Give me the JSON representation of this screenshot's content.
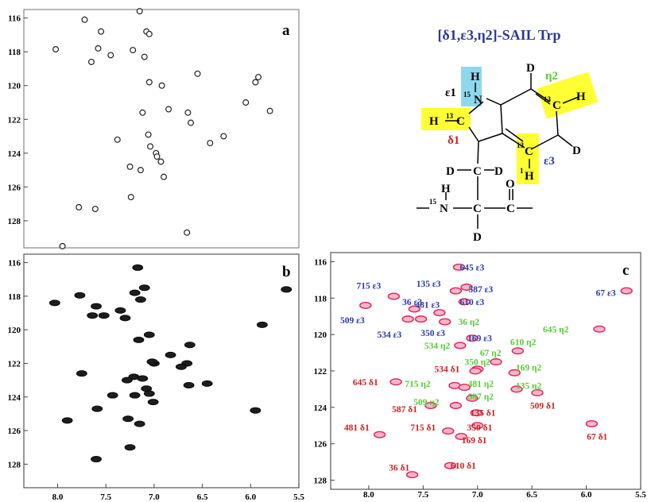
{
  "structure": {
    "title": "[δ1,ε3,η2]-SAIL Trp",
    "greek": {
      "e1": "ε1",
      "d1": "δ1",
      "e3": "ε3",
      "h2": "η2"
    },
    "atoms": {
      "H": "H",
      "D": "D",
      "N": "N",
      "C": "C",
      "O": "O",
      "iso15": "15",
      "iso13": "13",
      "iso1": "1"
    }
  },
  "colors": {
    "epsilon3": "#2b3aa8",
    "eta2": "#55cc33",
    "delta1": "#cc1f1f",
    "peak_c": "#e0225c",
    "highlight_yellow": "#ffff33",
    "highlight_cyan": "#8ed8ee",
    "title": "#2b3a8f"
  },
  "chart_data": [
    {
      "type": "scatter",
      "panel": "a",
      "xlim": [
        8.35,
        5.5
      ],
      "ylim": [
        115.5,
        129.6
      ],
      "yticks": [
        "116",
        "118",
        "120",
        "122",
        "124",
        "126",
        "128"
      ],
      "xticks": [],
      "style": "contour",
      "points": [
        {
          "x": 7.15,
          "y": 115.6
        },
        {
          "x": 7.72,
          "y": 116.1
        },
        {
          "x": 7.08,
          "y": 116.8
        },
        {
          "x": 7.05,
          "y": 116.95
        },
        {
          "x": 7.55,
          "y": 116.8
        },
        {
          "x": 8.02,
          "y": 117.85
        },
        {
          "x": 7.65,
          "y": 118.6
        },
        {
          "x": 7.58,
          "y": 117.8
        },
        {
          "x": 7.22,
          "y": 117.9
        },
        {
          "x": 7.45,
          "y": 118.2
        },
        {
          "x": 7.1,
          "y": 118.3
        },
        {
          "x": 6.92,
          "y": 120.0
        },
        {
          "x": 7.05,
          "y": 119.8
        },
        {
          "x": 6.55,
          "y": 119.3
        },
        {
          "x": 6.85,
          "y": 121.4
        },
        {
          "x": 7.12,
          "y": 121.6
        },
        {
          "x": 6.65,
          "y": 121.6
        },
        {
          "x": 6.62,
          "y": 122.2
        },
        {
          "x": 7.06,
          "y": 122.9
        },
        {
          "x": 7.38,
          "y": 123.2
        },
        {
          "x": 7.04,
          "y": 123.6
        },
        {
          "x": 6.98,
          "y": 124.0
        },
        {
          "x": 6.97,
          "y": 124.2
        },
        {
          "x": 6.93,
          "y": 124.5
        },
        {
          "x": 7.14,
          "y": 125.0
        },
        {
          "x": 7.24,
          "y": 126.6
        },
        {
          "x": 7.61,
          "y": 127.3
        },
        {
          "x": 7.78,
          "y": 127.2
        },
        {
          "x": 6.42,
          "y": 123.4
        },
        {
          "x": 6.05,
          "y": 121.0
        },
        {
          "x": 5.92,
          "y": 119.5
        },
        {
          "x": 5.95,
          "y": 119.8
        },
        {
          "x": 5.8,
          "y": 121.5
        },
        {
          "x": 6.28,
          "y": 123.0
        },
        {
          "x": 6.66,
          "y": 128.7
        },
        {
          "x": 7.95,
          "y": 129.5
        },
        {
          "x": 7.25,
          "y": 124.8
        },
        {
          "x": 6.9,
          "y": 125.4
        }
      ]
    },
    {
      "type": "scatter",
      "panel": "b",
      "xlim": [
        8.35,
        5.5
      ],
      "ylim": [
        115.5,
        129.4
      ],
      "yticks": [
        "116",
        "118",
        "120",
        "122",
        "124",
        "126",
        "128"
      ],
      "xticks": [
        "8.0",
        "7.5",
        "7.0",
        "6.5",
        "6.0",
        "5.5"
      ],
      "style": "filled",
      "points": [
        {
          "x": 7.17,
          "y": 116.3
        },
        {
          "x": 7.1,
          "y": 117.5
        },
        {
          "x": 7.2,
          "y": 117.8
        },
        {
          "x": 7.14,
          "y": 118.2
        },
        {
          "x": 7.77,
          "y": 117.95
        },
        {
          "x": 8.03,
          "y": 118.4
        },
        {
          "x": 5.63,
          "y": 117.6
        },
        {
          "x": 5.88,
          "y": 119.7
        },
        {
          "x": 7.6,
          "y": 118.6
        },
        {
          "x": 7.52,
          "y": 119.15
        },
        {
          "x": 7.64,
          "y": 119.15
        },
        {
          "x": 7.35,
          "y": 118.85
        },
        {
          "x": 7.3,
          "y": 119.3
        },
        {
          "x": 7.05,
          "y": 120.3
        },
        {
          "x": 7.16,
          "y": 120.6
        },
        {
          "x": 6.63,
          "y": 120.9
        },
        {
          "x": 6.83,
          "y": 121.5
        },
        {
          "x": 7.0,
          "y": 122.0
        },
        {
          "x": 6.66,
          "y": 122.0
        },
        {
          "x": 6.72,
          "y": 122.2
        },
        {
          "x": 7.02,
          "y": 121.9
        },
        {
          "x": 7.21,
          "y": 122.8
        },
        {
          "x": 7.12,
          "y": 122.9
        },
        {
          "x": 7.28,
          "y": 123.0
        },
        {
          "x": 7.08,
          "y": 123.5
        },
        {
          "x": 7.05,
          "y": 123.8
        },
        {
          "x": 6.64,
          "y": 123.3
        },
        {
          "x": 7.43,
          "y": 123.9
        },
        {
          "x": 7.2,
          "y": 123.9
        },
        {
          "x": 7.01,
          "y": 124.3
        },
        {
          "x": 6.45,
          "y": 123.2
        },
        {
          "x": 7.75,
          "y": 122.6
        },
        {
          "x": 7.59,
          "y": 124.7
        },
        {
          "x": 7.27,
          "y": 125.3
        },
        {
          "x": 7.15,
          "y": 125.6
        },
        {
          "x": 7.9,
          "y": 125.4
        },
        {
          "x": 5.95,
          "y": 124.8
        },
        {
          "x": 7.25,
          "y": 127.0
        },
        {
          "x": 7.6,
          "y": 127.7
        }
      ]
    },
    {
      "type": "scatter",
      "panel": "c",
      "xlim": [
        8.35,
        5.5
      ],
      "ylim": [
        115.5,
        128.5
      ],
      "yticks": [
        "116",
        "118",
        "120",
        "122",
        "124",
        "126",
        "128"
      ],
      "xticks": [
        "8.0",
        "7.5",
        "7.0",
        "6.5",
        "6.0",
        "5.5"
      ],
      "style": "contour",
      "series": [
        {
          "name": "ε3",
          "points": [
            {
              "x": 7.17,
              "y": 116.3,
              "label": "645 ε3",
              "lx": 7.05,
              "ly": 116.3
            },
            {
              "x": 7.1,
              "y": 117.4,
              "label": "587 ε3",
              "lx": 6.97,
              "ly": 117.5
            },
            {
              "x": 7.2,
              "y": 117.6,
              "label": "135 ε3",
              "lx": 7.45,
              "ly": 117.2
            },
            {
              "x": 7.77,
              "y": 117.9,
              "label": "715 ε3",
              "lx": 8.0,
              "ly": 117.3
            },
            {
              "x": 7.12,
              "y": 118.2,
              "label": "610 ε3",
              "lx": 7.05,
              "ly": 118.2
            },
            {
              "x": 5.63,
              "y": 117.6,
              "label": "67 ε3",
              "lx": 5.82,
              "ly": 117.7
            },
            {
              "x": 7.35,
              "y": 118.8,
              "label": "481 ε3",
              "lx": 7.46,
              "ly": 118.35
            },
            {
              "x": 7.58,
              "y": 118.6,
              "label": "36 ε3",
              "lx": 7.6,
              "ly": 118.2
            },
            {
              "x": 8.03,
              "y": 118.4,
              "label": "509 ε3",
              "lx": 8.15,
              "ly": 119.2
            },
            {
              "x": 7.52,
              "y": 119.15,
              "label": "350 ε3",
              "lx": 7.41,
              "ly": 119.9
            },
            {
              "x": 7.64,
              "y": 119.15,
              "label": "534 ε3",
              "lx": 7.81,
              "ly": 120.0
            },
            {
              "x": 7.05,
              "y": 120.2,
              "label": "169 ε3",
              "lx": 6.98,
              "ly": 120.2
            }
          ]
        },
        {
          "name": "η2",
          "points": [
            {
              "x": 5.88,
              "y": 119.7,
              "label": "645 η2",
              "lx": 6.28,
              "ly": 119.7
            },
            {
              "x": 7.3,
              "y": 119.3,
              "label": "36 η2",
              "lx": 7.08,
              "ly": 119.3
            },
            {
              "x": 7.16,
              "y": 120.6,
              "label": "534 η2",
              "lx": 7.37,
              "ly": 120.6
            },
            {
              "x": 6.63,
              "y": 120.9,
              "label": "610 η2",
              "lx": 6.58,
              "ly": 120.4
            },
            {
              "x": 6.83,
              "y": 121.5,
              "label": "67 η2",
              "lx": 6.88,
              "ly": 121.0
            },
            {
              "x": 7.0,
              "y": 121.9,
              "label": "350 η2",
              "lx": 7.0,
              "ly": 121.5
            },
            {
              "x": 6.66,
              "y": 122.1,
              "label": "169 η2",
              "lx": 6.53,
              "ly": 121.8
            },
            {
              "x": 7.21,
              "y": 122.8,
              "label": "715 η2",
              "lx": 7.55,
              "ly": 122.7
            },
            {
              "x": 7.12,
              "y": 122.9,
              "label": "481 η2",
              "lx": 6.97,
              "ly": 122.7
            },
            {
              "x": 6.64,
              "y": 123.0,
              "label": "135 η2",
              "lx": 6.53,
              "ly": 122.8
            },
            {
              "x": 7.05,
              "y": 123.5,
              "label": "587 η2",
              "lx": 6.97,
              "ly": 123.4
            },
            {
              "x": 7.2,
              "y": 123.9,
              "label": "509 η2",
              "lx": 7.47,
              "ly": 123.7
            }
          ]
        },
        {
          "name": "δ1",
          "points": [
            {
              "x": 7.02,
              "y": 122.0,
              "label": "534 δ1",
              "lx": 7.28,
              "ly": 121.9
            },
            {
              "x": 7.75,
              "y": 122.6,
              "label": "645 δ1",
              "lx": 8.03,
              "ly": 122.6
            },
            {
              "x": 7.43,
              "y": 123.9,
              "label": "587 δ1",
              "lx": 7.67,
              "ly": 124.1
            },
            {
              "x": 7.01,
              "y": 124.3,
              "label": "135 δ1",
              "lx": 6.95,
              "ly": 124.3
            },
            {
              "x": 6.45,
              "y": 123.2,
              "label": "509 δ1",
              "lx": 6.4,
              "ly": 123.9
            },
            {
              "x": 7.27,
              "y": 125.3,
              "label": "715 δ1",
              "lx": 7.5,
              "ly": 125.1
            },
            {
              "x": 7.15,
              "y": 125.6,
              "label": "169 δ1",
              "lx": 7.03,
              "ly": 125.8
            },
            {
              "x": 7.0,
              "y": 125.0,
              "label": "350 δ1",
              "lx": 6.98,
              "ly": 125.1
            },
            {
              "x": 7.9,
              "y": 125.5,
              "label": "481 δ1",
              "lx": 8.11,
              "ly": 125.1
            },
            {
              "x": 5.95,
              "y": 124.9,
              "label": "67 δ1",
              "lx": 5.9,
              "ly": 125.6
            },
            {
              "x": 7.25,
              "y": 127.2,
              "label": "610 δ1",
              "lx": 7.13,
              "ly": 127.2
            },
            {
              "x": 7.6,
              "y": 127.7,
              "label": "36 δ1",
              "lx": 7.72,
              "ly": 127.3
            }
          ]
        }
      ]
    }
  ]
}
